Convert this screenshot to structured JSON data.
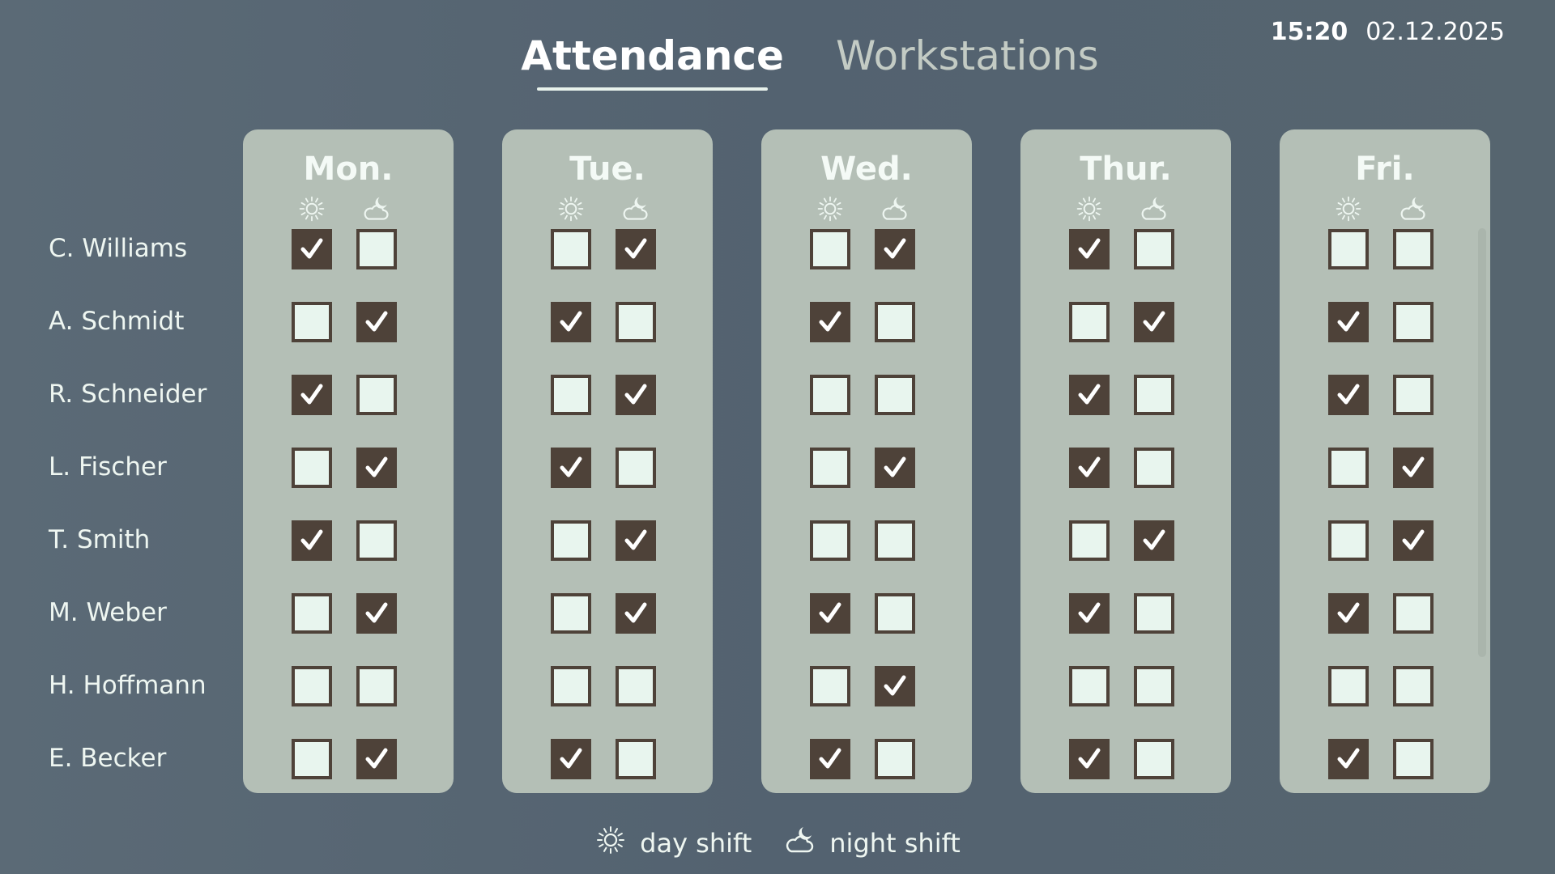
{
  "clock": {
    "time": "15:20",
    "date": "02.12.2025"
  },
  "tabs": [
    {
      "label": "Attendance",
      "active": true
    },
    {
      "label": "Workstations",
      "active": false
    }
  ],
  "icons": {
    "day": "sun-icon",
    "night": "cloud-moon-icon",
    "check": "checkmark-icon"
  },
  "colors": {
    "background": "#566572",
    "card": "#b4bfb6",
    "checked": "#4e4239",
    "unchecked": "#e8f5ee",
    "text": "#eef6f1"
  },
  "employees": [
    "C. Williams",
    "A. Schmidt",
    "R. Schneider",
    "L. Fischer",
    "T. Smith",
    "M. Weber",
    "H. Hoffmann",
    "E. Becker"
  ],
  "days": [
    {
      "label": "Mon.",
      "day": [
        true,
        false,
        true,
        false,
        true,
        false,
        false,
        false
      ],
      "night": [
        false,
        true,
        false,
        true,
        false,
        true,
        false,
        true
      ]
    },
    {
      "label": "Tue.",
      "day": [
        false,
        true,
        false,
        true,
        false,
        false,
        false,
        true
      ],
      "night": [
        true,
        false,
        true,
        false,
        true,
        true,
        false,
        false
      ]
    },
    {
      "label": "Wed.",
      "day": [
        false,
        true,
        false,
        false,
        false,
        true,
        false,
        true
      ],
      "night": [
        true,
        false,
        false,
        true,
        false,
        false,
        true,
        false
      ]
    },
    {
      "label": "Thur.",
      "day": [
        true,
        false,
        true,
        true,
        false,
        true,
        false,
        true
      ],
      "night": [
        false,
        true,
        false,
        false,
        true,
        false,
        false,
        false
      ]
    },
    {
      "label": "Fri.",
      "day": [
        false,
        true,
        true,
        false,
        false,
        true,
        false,
        true
      ],
      "night": [
        false,
        false,
        false,
        true,
        true,
        false,
        false,
        false
      ]
    }
  ],
  "legend": {
    "day_label": "day shift",
    "night_label": "night shift"
  }
}
